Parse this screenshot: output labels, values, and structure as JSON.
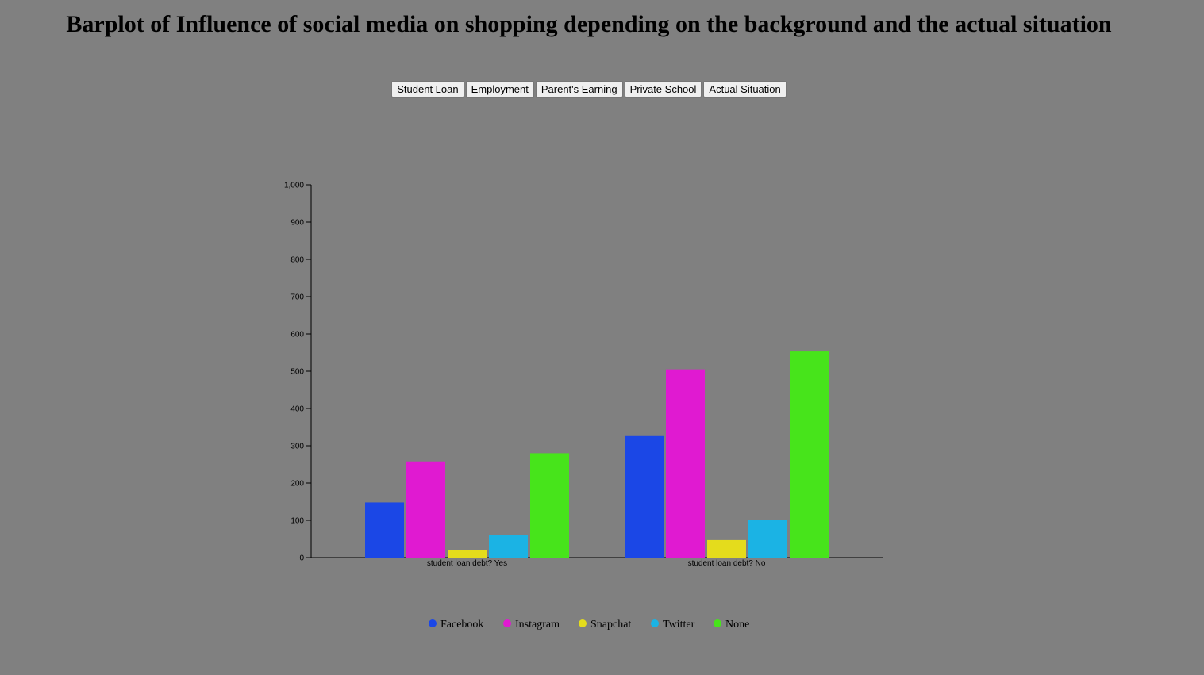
{
  "title": "Barplot of Influence of social media on shopping depending on the background and the actual situation",
  "buttons": [
    {
      "label": "Student Loan"
    },
    {
      "label": "Employment"
    },
    {
      "label": "Parent's Earning"
    },
    {
      "label": "Private School"
    },
    {
      "label": "Actual Situation"
    }
  ],
  "chart_data": {
    "type": "bar",
    "title": "",
    "xlabel": "",
    "ylabel": "",
    "ylim": [
      0,
      1000
    ],
    "yticks": [
      0,
      100,
      200,
      300,
      400,
      500,
      600,
      700,
      800,
      900,
      1000
    ],
    "ytick_labels": [
      "0",
      "100",
      "200",
      "300",
      "400",
      "500",
      "600",
      "700",
      "800",
      "900",
      "1,000"
    ],
    "categories": [
      "student loan debt? Yes",
      "student loan debt? No"
    ],
    "series": [
      {
        "name": "Facebook",
        "color": "#1b47e6",
        "values": [
          148,
          326
        ]
      },
      {
        "name": "Instagram",
        "color": "#e01ad1",
        "values": [
          258,
          505
        ]
      },
      {
        "name": "Snapchat",
        "color": "#e4dc1c",
        "values": [
          20,
          47
        ]
      },
      {
        "name": "Twitter",
        "color": "#1bb3e4",
        "values": [
          60,
          100
        ]
      },
      {
        "name": "None",
        "color": "#47e41b",
        "values": [
          280,
          553
        ]
      }
    ],
    "grid": false,
    "legend_position": "bottom-center"
  }
}
